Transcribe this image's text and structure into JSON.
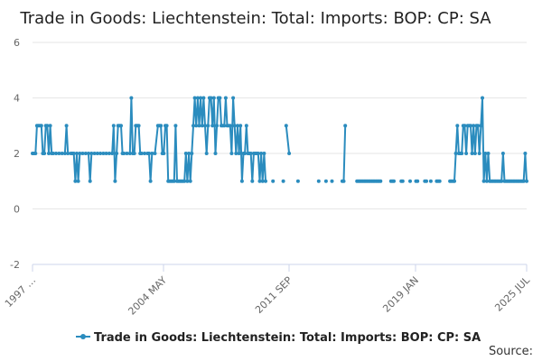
{
  "chart_data": {
    "type": "line",
    "title": "Trade in Goods: Liechtenstein: Total: Imports: BOP: CP: SA",
    "xlabel": "",
    "ylabel": "",
    "ylim": [
      -2,
      6
    ],
    "yticks": [
      "6",
      "4",
      "2",
      "0",
      "-2"
    ],
    "xticks": [
      "1997 …",
      "2004 MAY",
      "2011 SEP",
      "2019 JAN",
      "2025 JUL"
    ],
    "x_range": [
      "1997 JAN",
      "2025 JUL"
    ],
    "grid": true,
    "legend": "bottom",
    "series": [
      {
        "name": "Trade in Goods: Liechtenstein: Total: Imports: BOP: CP: SA",
        "color": "#2b8cbe",
        "segments": [
          [
            [
              1997.0,
              2
            ],
            [
              1997.1,
              2
            ],
            [
              1997.2,
              2
            ],
            [
              1997.3,
              3
            ],
            [
              1997.4,
              3
            ],
            [
              1997.5,
              3
            ],
            [
              1997.6,
              3
            ],
            [
              1997.7,
              2
            ],
            [
              1997.8,
              2
            ],
            [
              1997.9,
              3
            ],
            [
              1998.0,
              3
            ],
            [
              1998.1,
              2
            ],
            [
              1998.2,
              3
            ],
            [
              1998.3,
              2
            ],
            [
              1998.4,
              2
            ],
            [
              1998.6,
              2
            ],
            [
              1998.8,
              2
            ],
            [
              1999.0,
              2
            ],
            [
              1999.2,
              2
            ],
            [
              1999.3,
              3
            ],
            [
              1999.4,
              2
            ],
            [
              1999.6,
              2
            ],
            [
              1999.7,
              2
            ],
            [
              1999.8,
              2
            ],
            [
              1999.9,
              1
            ],
            [
              2000.0,
              2
            ],
            [
              2000.1,
              1
            ],
            [
              2000.2,
              2
            ],
            [
              2000.4,
              2
            ],
            [
              2000.6,
              2
            ],
            [
              2000.8,
              2
            ],
            [
              2000.9,
              1
            ],
            [
              2001.0,
              2
            ],
            [
              2001.2,
              2
            ],
            [
              2001.4,
              2
            ],
            [
              2001.6,
              2
            ],
            [
              2001.8,
              2
            ],
            [
              2002.0,
              2
            ],
            [
              2002.2,
              2
            ],
            [
              2002.4,
              2
            ],
            [
              2002.5,
              3
            ],
            [
              2002.6,
              1
            ],
            [
              2002.7,
              2
            ],
            [
              2002.8,
              3
            ],
            [
              2002.9,
              3
            ],
            [
              2003.0,
              3
            ],
            [
              2003.1,
              2
            ],
            [
              2003.2,
              2
            ],
            [
              2003.4,
              2
            ],
            [
              2003.6,
              2
            ],
            [
              2003.7,
              4
            ],
            [
              2003.8,
              2
            ],
            [
              2003.9,
              2
            ],
            [
              2004.0,
              3
            ],
            [
              2004.1,
              3
            ],
            [
              2004.2,
              3
            ],
            [
              2004.3,
              2
            ],
            [
              2004.4,
              2
            ],
            [
              2004.6,
              2
            ],
            [
              2004.8,
              2
            ],
            [
              2004.9,
              2
            ],
            [
              2005.0,
              1
            ],
            [
              2005.1,
              2
            ],
            [
              2005.3,
              2
            ],
            [
              2005.5,
              3
            ],
            [
              2005.6,
              3
            ],
            [
              2005.7,
              3
            ],
            [
              2005.8,
              2
            ],
            [
              2005.9,
              2
            ],
            [
              2006.0,
              3
            ],
            [
              2006.1,
              3
            ],
            [
              2006.2,
              1
            ],
            [
              2006.3,
              1
            ],
            [
              2006.4,
              1
            ],
            [
              2006.5,
              1
            ],
            [
              2006.6,
              1
            ],
            [
              2006.7,
              3
            ],
            [
              2006.8,
              1
            ],
            [
              2006.9,
              1
            ],
            [
              2007.0,
              1
            ],
            [
              2007.1,
              1
            ],
            [
              2007.2,
              1
            ],
            [
              2007.3,
              1
            ],
            [
              2007.4,
              2
            ],
            [
              2007.5,
              1
            ],
            [
              2007.6,
              2
            ],
            [
              2007.7,
              1
            ],
            [
              2007.8,
              2
            ],
            [
              2007.9,
              3
            ],
            [
              2008.0,
              4
            ],
            [
              2008.1,
              3
            ],
            [
              2008.2,
              4
            ],
            [
              2008.3,
              3
            ],
            [
              2008.4,
              4
            ],
            [
              2008.5,
              3
            ],
            [
              2008.6,
              4
            ],
            [
              2008.7,
              3
            ],
            [
              2008.8,
              2
            ],
            [
              2008.9,
              3
            ],
            [
              2009.0,
              4
            ],
            [
              2009.1,
              4
            ],
            [
              2009.2,
              3
            ],
            [
              2009.3,
              4
            ],
            [
              2009.4,
              2
            ],
            [
              2009.5,
              3
            ],
            [
              2009.6,
              4
            ],
            [
              2009.7,
              4
            ],
            [
              2009.8,
              3
            ],
            [
              2009.9,
              3
            ],
            [
              2010.0,
              3
            ],
            [
              2010.1,
              4
            ],
            [
              2010.2,
              3
            ],
            [
              2010.3,
              3
            ],
            [
              2010.4,
              3
            ],
            [
              2010.5,
              2
            ],
            [
              2010.6,
              4
            ],
            [
              2010.7,
              3
            ],
            [
              2010.8,
              2
            ],
            [
              2010.9,
              3
            ],
            [
              2011.0,
              2
            ],
            [
              2011.1,
              3
            ],
            [
              2011.2,
              1
            ],
            [
              2011.3,
              2
            ],
            [
              2011.4,
              2
            ],
            [
              2011.5,
              3
            ],
            [
              2011.6,
              2
            ],
            [
              2011.7,
              2
            ],
            [
              2011.8,
              2
            ],
            [
              2011.9,
              1
            ],
            [
              2012.0,
              2
            ],
            [
              2012.1,
              2
            ],
            [
              2012.2,
              2
            ],
            [
              2012.3,
              2
            ],
            [
              2012.4,
              1
            ],
            [
              2012.5,
              2
            ],
            [
              2012.6,
              1
            ],
            [
              2012.7,
              2
            ],
            [
              2012.8,
              1
            ]
          ],
          [
            [
              2013.3,
              1
            ]
          ],
          [
            [
              2014.0,
              1
            ]
          ],
          [
            [
              2014.2,
              3
            ],
            [
              2014.4,
              2
            ]
          ],
          [
            [
              2015.0,
              1
            ]
          ],
          [
            [
              2016.4,
              1
            ]
          ],
          [
            [
              2016.9,
              1
            ]
          ],
          [
            [
              2017.3,
              1
            ]
          ],
          [
            [
              2018.0,
              1
            ],
            [
              2018.1,
              1
            ],
            [
              2018.2,
              3
            ]
          ],
          [
            [
              2019.0,
              1
            ],
            [
              2019.1,
              1
            ],
            [
              2019.2,
              1
            ],
            [
              2019.3,
              1
            ],
            [
              2019.4,
              1
            ],
            [
              2019.5,
              1
            ],
            [
              2019.6,
              1
            ],
            [
              2019.7,
              1
            ],
            [
              2019.8,
              1
            ],
            [
              2019.9,
              1
            ],
            [
              2020.0,
              1
            ],
            [
              2020.1,
              1
            ],
            [
              2020.2,
              1
            ],
            [
              2020.3,
              1
            ],
            [
              2020.4,
              1
            ],
            [
              2020.5,
              1
            ],
            [
              2020.6,
              1
            ]
          ],
          [
            [
              2021.3,
              1
            ],
            [
              2021.4,
              1
            ],
            [
              2021.5,
              1
            ]
          ],
          [
            [
              2022.0,
              1
            ],
            [
              2022.1,
              1
            ]
          ],
          [
            [
              2022.6,
              1
            ]
          ],
          [
            [
              2023.0,
              1
            ],
            [
              2023.1,
              1
            ]
          ],
          [
            [
              2023.6,
              1
            ],
            [
              2023.7,
              1
            ]
          ],
          [
            [
              2024.0,
              1
            ]
          ],
          [
            [
              2024.4,
              1
            ],
            [
              2024.5,
              1
            ],
            [
              2024.6,
              1
            ]
          ],
          [
            [
              2025.3,
              1
            ],
            [
              2025.4,
              1
            ],
            [
              2025.5,
              1
            ],
            [
              2025.6,
              1
            ],
            [
              2025.7,
              2
            ],
            [
              2025.8,
              3
            ],
            [
              2025.9,
              2
            ],
            [
              2026.0,
              2
            ],
            [
              2026.1,
              2
            ],
            [
              2026.2,
              3
            ],
            [
              2026.3,
              3
            ],
            [
              2026.4,
              2
            ],
            [
              2026.5,
              3
            ],
            [
              2026.6,
              3
            ],
            [
              2026.7,
              3
            ],
            [
              2026.8,
              2
            ],
            [
              2026.9,
              3
            ],
            [
              2027.0,
              2
            ],
            [
              2027.1,
              3
            ],
            [
              2027.2,
              3
            ],
            [
              2027.3,
              2
            ],
            [
              2027.4,
              3
            ],
            [
              2027.5,
              4
            ],
            [
              2027.6,
              1
            ],
            [
              2027.7,
              2
            ],
            [
              2027.8,
              1
            ],
            [
              2027.9,
              2
            ],
            [
              2028.0,
              1
            ],
            [
              2028.1,
              1
            ],
            [
              2028.2,
              1
            ],
            [
              2028.3,
              1
            ],
            [
              2028.4,
              1
            ],
            [
              2028.5,
              1
            ],
            [
              2028.6,
              1
            ],
            [
              2028.7,
              1
            ],
            [
              2028.8,
              1
            ],
            [
              2028.9,
              2
            ],
            [
              2029.0,
              1
            ],
            [
              2029.1,
              1
            ],
            [
              2029.2,
              1
            ],
            [
              2029.3,
              1
            ],
            [
              2029.4,
              1
            ],
            [
              2029.5,
              1
            ],
            [
              2029.6,
              1
            ],
            [
              2029.7,
              1
            ],
            [
              2029.8,
              1
            ],
            [
              2029.9,
              1
            ],
            [
              2030.0,
              1
            ],
            [
              2030.1,
              1
            ],
            [
              2030.2,
              1
            ],
            [
              2030.3,
              1
            ],
            [
              2030.4,
              2
            ],
            [
              2030.5,
              1
            ]
          ]
        ]
      }
    ]
  },
  "footer": {
    "source_label": "Source:"
  }
}
